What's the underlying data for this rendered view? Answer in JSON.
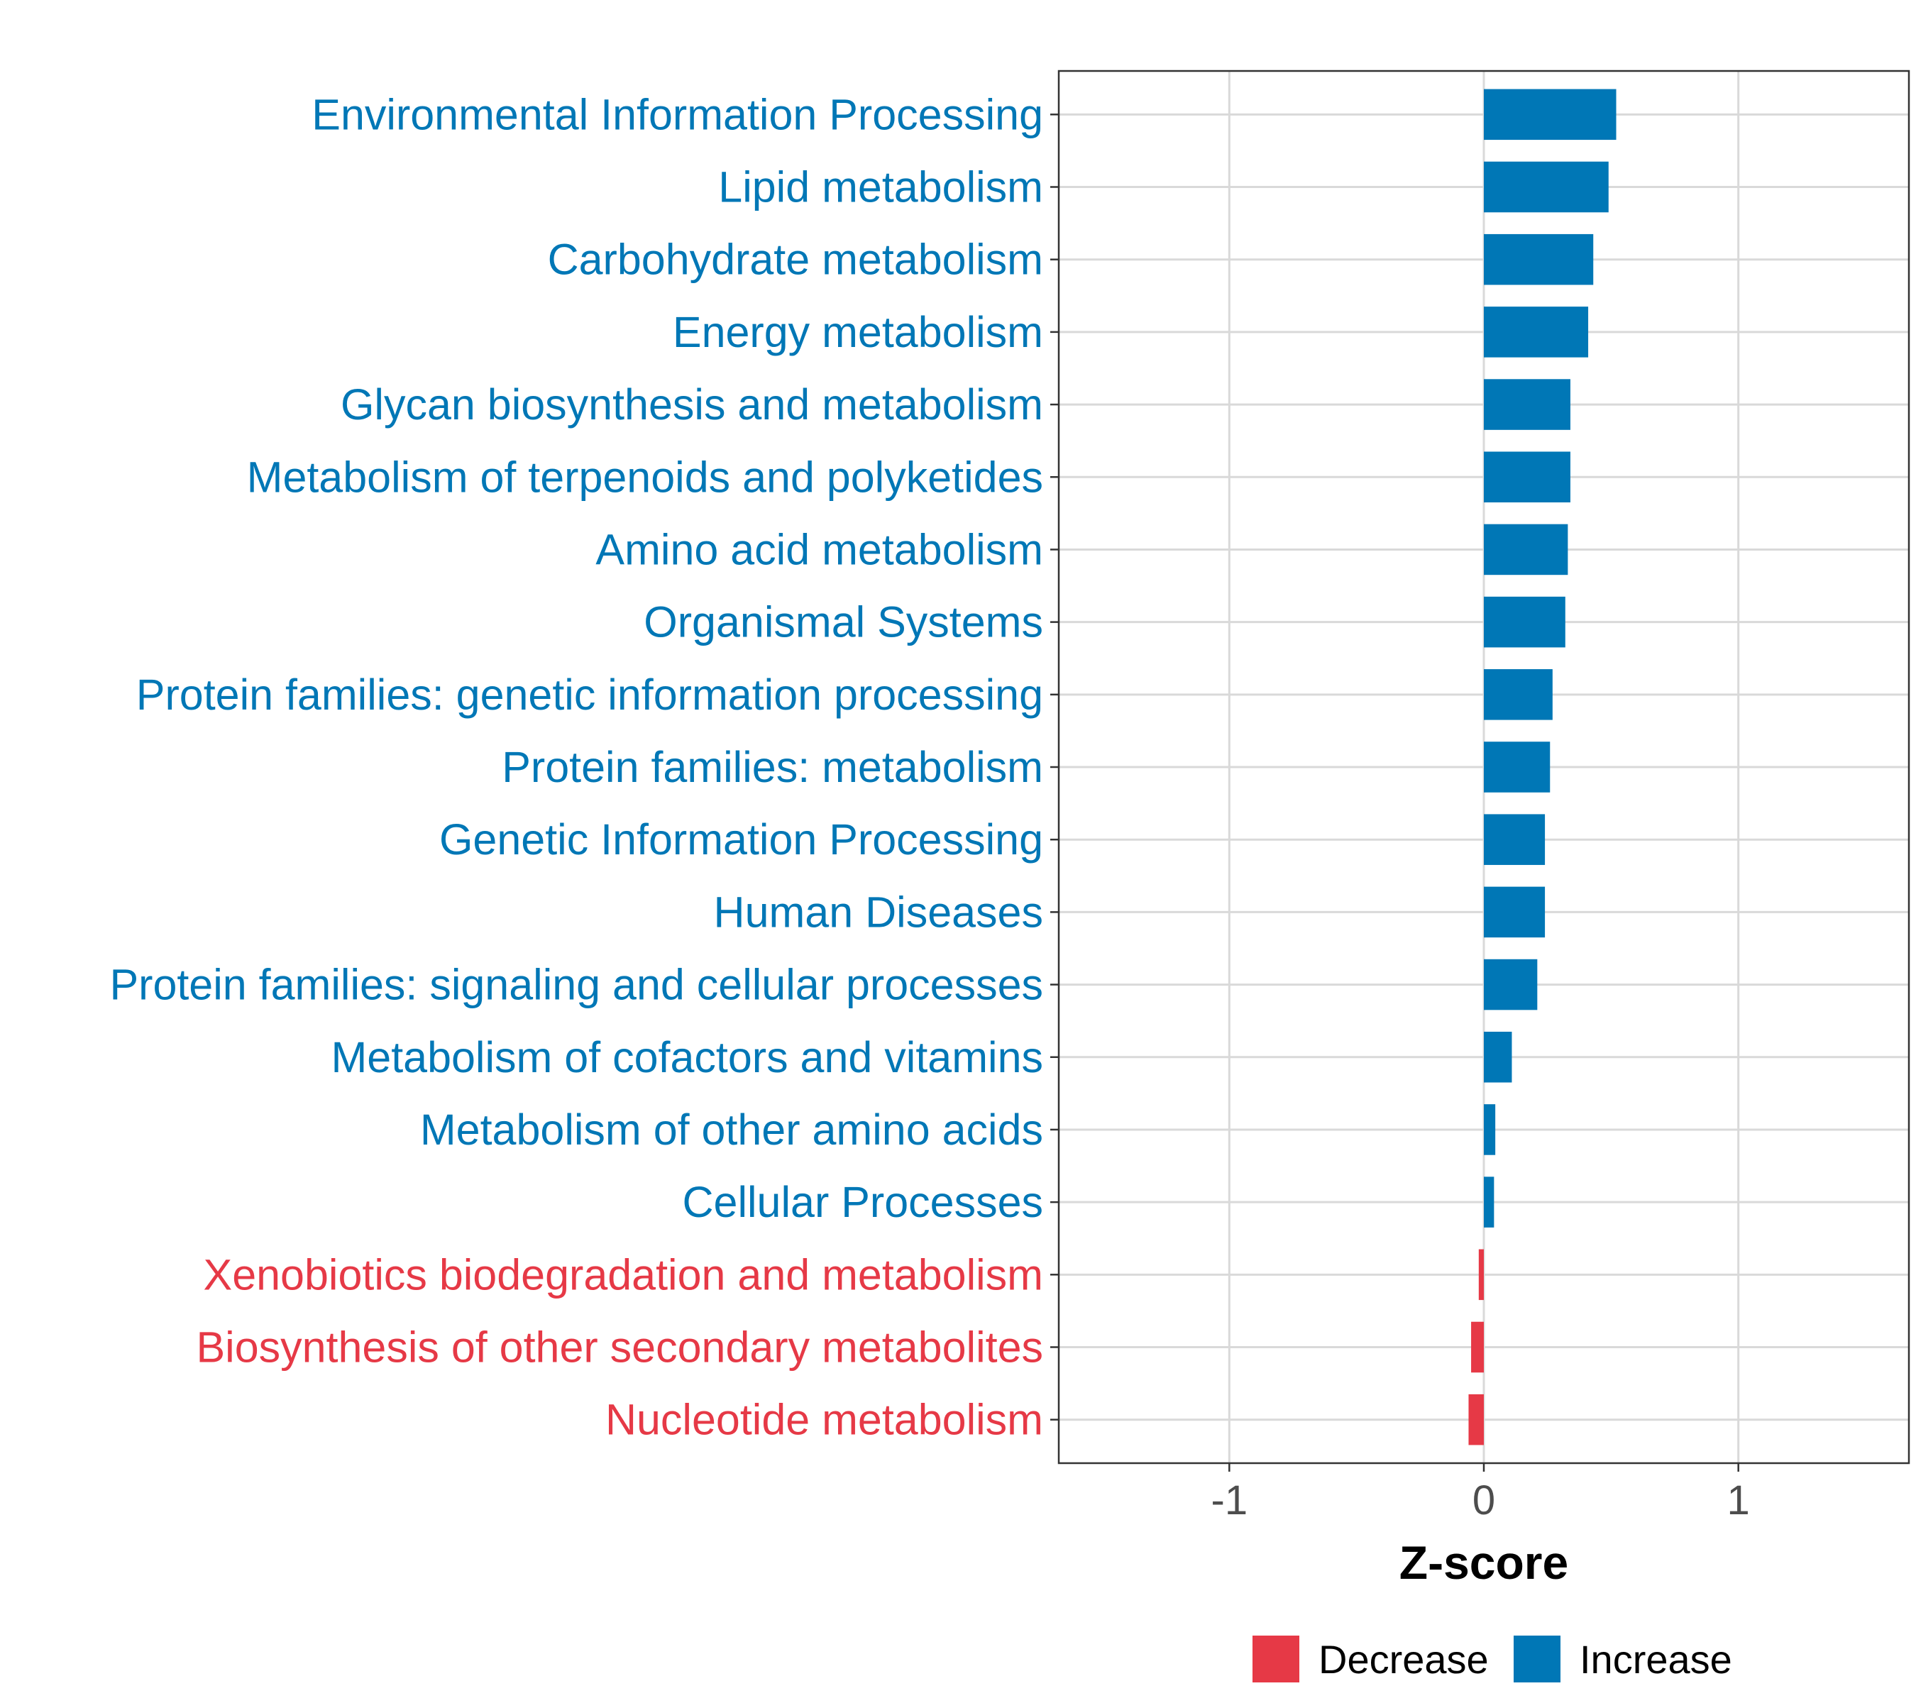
{
  "chart_data": {
    "type": "bar",
    "orientation": "horizontal",
    "xlabel": "Z-score",
    "xlim": [
      -1.67,
      1.67
    ],
    "xticks": [
      -1,
      0,
      1
    ],
    "xtick_labels": [
      "-1",
      "0",
      "1"
    ],
    "grid": true,
    "legend_position": "bottom",
    "colors": {
      "Decrease": "#e63946",
      "Increase": "#0077b6"
    },
    "legend": [
      {
        "label": "Decrease",
        "color": "#e63946"
      },
      {
        "label": "Increase",
        "color": "#0077b6"
      }
    ],
    "categories": [
      "Environmental Information Processing",
      "Lipid metabolism",
      "Carbohydrate metabolism",
      "Energy metabolism",
      "Glycan biosynthesis and metabolism",
      "Metabolism of terpenoids and polyketides",
      "Amino acid metabolism",
      "Organismal Systems",
      "Protein families: genetic information processing",
      "Protein families: metabolism",
      "Genetic Information Processing",
      "Human Diseases",
      "Protein families: signaling and cellular processes",
      "Metabolism of cofactors and vitamins",
      "Metabolism of other amino acids",
      "Cellular Processes",
      "Xenobiotics biodegradation and metabolism",
      "Biosynthesis of other secondary metabolites",
      "Nucleotide metabolism"
    ],
    "values": [
      0.52,
      0.49,
      0.43,
      0.41,
      0.34,
      0.34,
      0.33,
      0.32,
      0.27,
      0.26,
      0.24,
      0.24,
      0.21,
      0.11,
      0.045,
      0.04,
      -0.02,
      -0.05,
      -0.06
    ],
    "groups": [
      "Increase",
      "Increase",
      "Increase",
      "Increase",
      "Increase",
      "Increase",
      "Increase",
      "Increase",
      "Increase",
      "Increase",
      "Increase",
      "Increase",
      "Increase",
      "Increase",
      "Increase",
      "Increase",
      "Decrease",
      "Decrease",
      "Decrease"
    ]
  }
}
